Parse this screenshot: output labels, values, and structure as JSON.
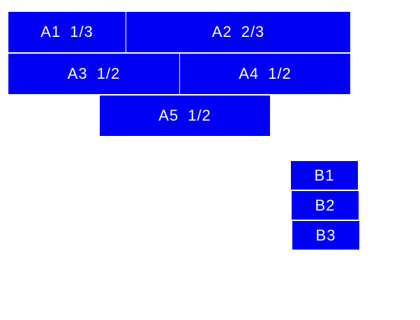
{
  "groupA": {
    "items": [
      {
        "label": "A1 1/3"
      },
      {
        "label": "A2 2/3"
      },
      {
        "label": "A3 1/2"
      },
      {
        "label": "A4 1/2"
      },
      {
        "label": "A5 1/2"
      }
    ]
  },
  "groupB": {
    "items": [
      {
        "label": "B1"
      },
      {
        "label": "B2"
      },
      {
        "label": "B3"
      }
    ]
  },
  "colors": {
    "box": "#0000f5",
    "text": "#ffffff"
  }
}
